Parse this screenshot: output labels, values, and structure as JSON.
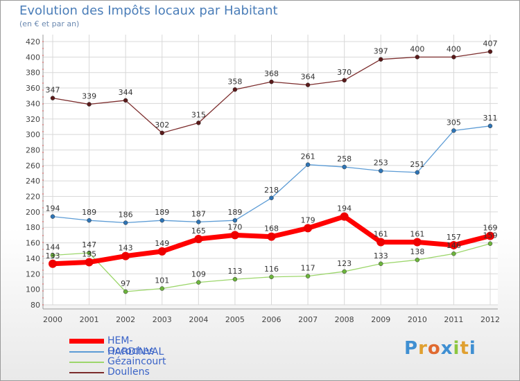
{
  "title": "Evolution des Impôts locaux par Habitant",
  "subtitle": "(en € et par an)",
  "logo": {
    "text": "Proxiti",
    "letters": [
      "P",
      "r",
      "o",
      "x",
      "i",
      "t",
      "i"
    ],
    "colors": [
      "#3f8fd2",
      "#e0a030",
      "#e06a30",
      "#3f8fd2",
      "#8cc63f",
      "#e0a030",
      "#3f8fd2"
    ]
  },
  "chart_data": {
    "type": "line",
    "x": [
      "2000",
      "2001",
      "2002",
      "2003",
      "2004",
      "2005",
      "2006",
      "2007",
      "2008",
      "2009",
      "2010",
      "2011",
      "2012"
    ],
    "ylim": [
      80,
      420
    ],
    "yticks": [
      80,
      100,
      120,
      140,
      160,
      180,
      200,
      220,
      240,
      260,
      280,
      300,
      320,
      340,
      360,
      380,
      400,
      420
    ],
    "grid": true,
    "legend_placement": "bottom-left",
    "series": [
      {
        "name": "Doullens",
        "color": "#7b2b2b",
        "dot": "#5a1a1a",
        "width": 1.3,
        "values": [
          347,
          339,
          344,
          302,
          315,
          358,
          368,
          364,
          370,
          397,
          400,
          400,
          407
        ],
        "labels": [
          "347",
          "339",
          "344",
          "302",
          "315",
          "358",
          "368",
          "364",
          "370",
          "397",
          "400",
          "400",
          "407"
        ]
      },
      {
        "name": "Occoches",
        "color": "#5b9bd5",
        "dot": "#2e74b5",
        "width": 1.3,
        "values": [
          194,
          189,
          186,
          189,
          187,
          189,
          218,
          261,
          258,
          253,
          251,
          305,
          311
        ],
        "labels": [
          "194",
          "189",
          "186",
          "189",
          "187",
          "189",
          "218",
          "261",
          "258",
          "253",
          "251",
          "305",
          "311"
        ]
      },
      {
        "name": "Gézaincourt",
        "color": "#9cd66b",
        "dot": "#6cb43c",
        "width": 1.3,
        "values": [
          144,
          147,
          97,
          101,
          109,
          113,
          116,
          117,
          123,
          133,
          138,
          146,
          159
        ],
        "labels": [
          "144",
          "147",
          "97",
          "101",
          "109",
          "113",
          "116",
          "117",
          "123",
          "133",
          "138",
          "146",
          "159"
        ]
      },
      {
        "name": "HEM-HARDINVAL",
        "color": "#ff0000",
        "dot": "#ee0000",
        "width": 7,
        "values": [
          133,
          135,
          143,
          149,
          165,
          170,
          168,
          179,
          194,
          161,
          161,
          157,
          169
        ],
        "labels": [
          "133",
          "135",
          "143",
          "149",
          "165",
          "170",
          "168",
          "179",
          "194",
          "161",
          "161",
          "157",
          "169"
        ]
      }
    ],
    "legend": [
      "HEM-HARDINVAL",
      "Occoches",
      "Gézaincourt",
      "Doullens"
    ]
  }
}
